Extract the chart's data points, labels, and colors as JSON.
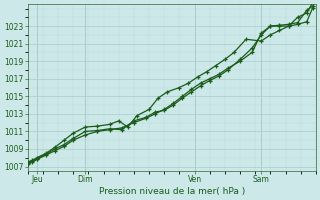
{
  "xlabel": "Pression niveau de la mer( hPa )",
  "background_color": "#cce8e8",
  "plot_bg_color": "#cce8e8",
  "grid_major_color": "#aacccc",
  "grid_minor_color": "#bdd8d8",
  "line_color": "#1a5c1a",
  "tick_label_color": "#1a5c1a",
  "axis_label_color": "#1a5c1a",
  "spine_color": "#336633",
  "ylim": [
    1006.5,
    1025.5
  ],
  "yticks": [
    1007,
    1009,
    1011,
    1013,
    1015,
    1017,
    1019,
    1021,
    1023
  ],
  "xlim": [
    0,
    9.5
  ],
  "day_labels": [
    "Jeu",
    "Dim",
    "Ven",
    "Sam"
  ],
  "day_positions": [
    0.3,
    1.9,
    5.5,
    7.7
  ],
  "day_vlines": [
    0.3,
    1.9,
    5.5,
    7.7
  ],
  "series1_x": [
    0.0,
    0.15,
    0.3,
    0.6,
    0.9,
    1.2,
    1.5,
    1.9,
    2.3,
    2.7,
    3.1,
    3.5,
    3.9,
    4.2,
    4.5,
    4.8,
    5.1,
    5.4,
    5.7,
    6.0,
    6.3,
    6.6,
    7.0,
    7.4,
    7.7,
    8.0,
    8.3,
    8.6,
    8.9,
    9.2,
    9.4
  ],
  "series1_y": [
    1007.3,
    1007.5,
    1007.8,
    1008.3,
    1008.8,
    1009.3,
    1010.0,
    1010.6,
    1011.0,
    1011.2,
    1011.4,
    1012.0,
    1012.5,
    1013.0,
    1013.5,
    1014.2,
    1015.0,
    1015.8,
    1016.5,
    1017.0,
    1017.5,
    1018.2,
    1019.0,
    1020.0,
    1022.2,
    1023.0,
    1023.1,
    1023.2,
    1023.4,
    1024.8,
    1025.3
  ],
  "series2_x": [
    0.0,
    0.15,
    0.3,
    0.6,
    0.9,
    1.2,
    1.5,
    1.9,
    2.3,
    2.7,
    3.1,
    3.5,
    3.9,
    4.2,
    4.5,
    4.8,
    5.1,
    5.4,
    5.7,
    6.0,
    6.3,
    6.6,
    7.0,
    7.4,
    7.7,
    8.0,
    8.3,
    8.6,
    8.9,
    9.2,
    9.4
  ],
  "series2_y": [
    1007.4,
    1007.6,
    1007.9,
    1008.4,
    1009.0,
    1009.5,
    1010.2,
    1011.0,
    1011.1,
    1011.3,
    1011.2,
    1012.2,
    1012.6,
    1013.2,
    1013.4,
    1014.0,
    1014.8,
    1015.5,
    1016.2,
    1016.8,
    1017.3,
    1018.0,
    1019.2,
    1020.5,
    1022.0,
    1023.0,
    1023.0,
    1023.0,
    1023.2,
    1023.5,
    1025.1
  ],
  "series3_x": [
    0.0,
    0.15,
    0.3,
    0.6,
    0.9,
    1.2,
    1.5,
    1.9,
    2.3,
    2.7,
    3.0,
    3.3,
    3.6,
    4.0,
    4.3,
    4.6,
    5.0,
    5.3,
    5.6,
    5.9,
    6.2,
    6.5,
    6.8,
    7.2,
    7.7,
    8.0,
    8.3,
    8.6,
    8.9,
    9.2,
    9.4
  ],
  "series3_y": [
    1007.5,
    1007.7,
    1008.0,
    1008.5,
    1009.2,
    1010.0,
    1010.8,
    1011.5,
    1011.6,
    1011.8,
    1012.2,
    1011.5,
    1012.8,
    1013.5,
    1014.8,
    1015.5,
    1016.0,
    1016.5,
    1017.2,
    1017.8,
    1018.5,
    1019.2,
    1020.0,
    1021.5,
    1021.3,
    1022.0,
    1022.5,
    1023.0,
    1024.0,
    1024.5,
    1025.7
  ],
  "figsize": [
    3.2,
    2.0
  ],
  "dpi": 100,
  "xlabel_fontsize": 6.5,
  "tick_fontsize": 5.5,
  "linewidth": 0.9,
  "markersize": 2.5
}
